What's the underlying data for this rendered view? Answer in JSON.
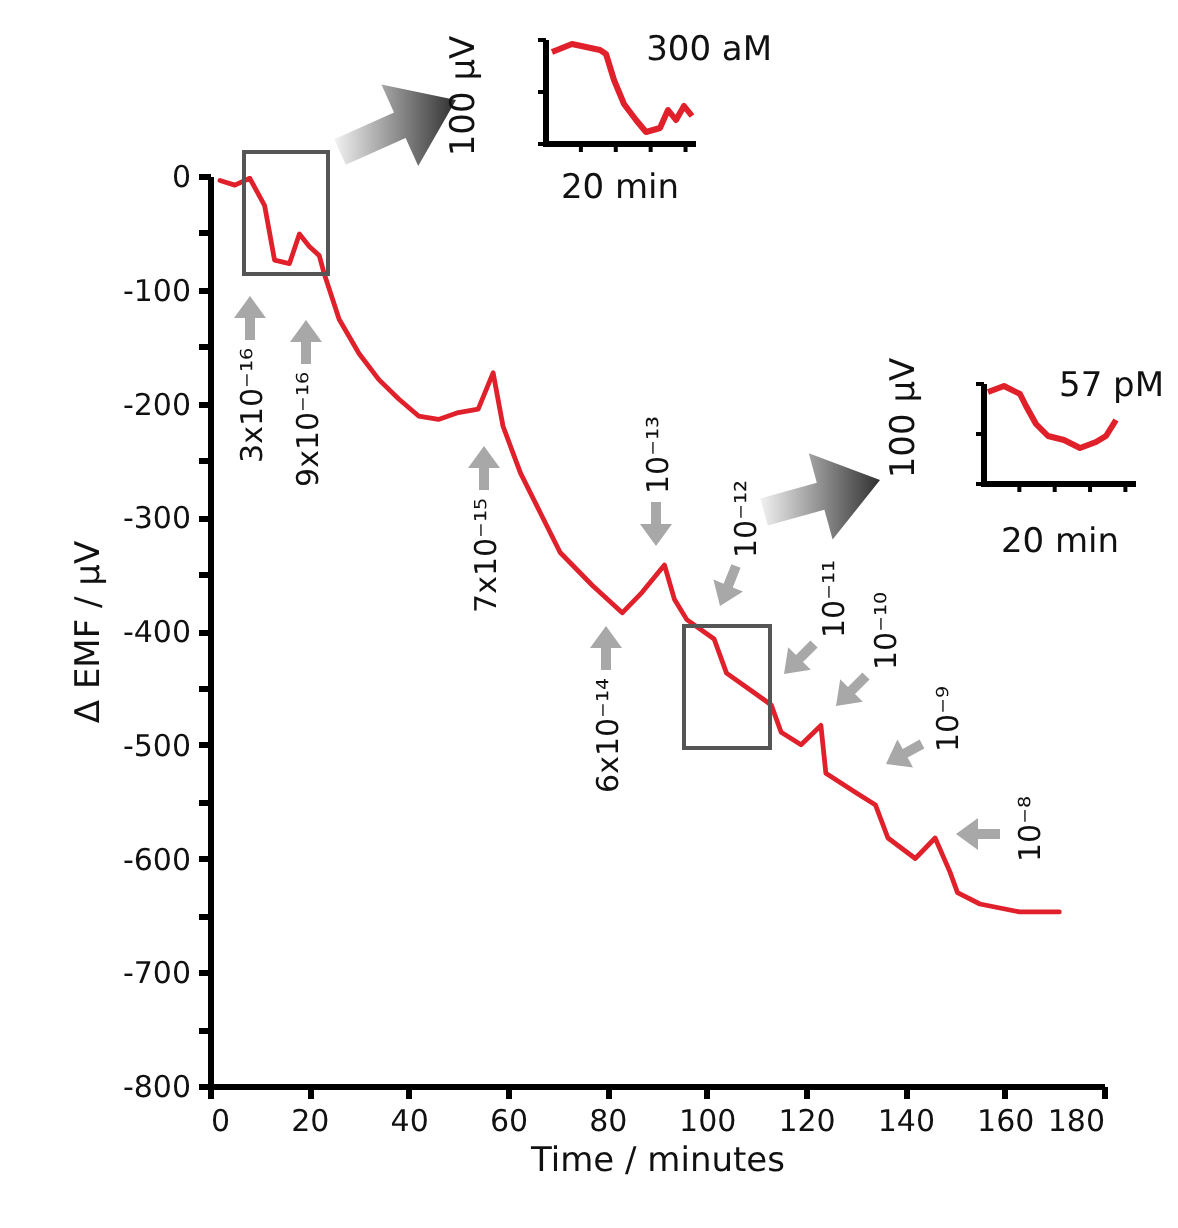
{
  "chart_data": {
    "type": "line",
    "xlabel": "Time / minutes",
    "ylabel": "Δ EMF / μV",
    "xlim": [
      0,
      180
    ],
    "xticks": [
      0,
      20,
      40,
      60,
      80,
      100,
      120,
      140,
      160,
      180
    ],
    "ylim": [
      -800,
      0
    ],
    "yticks": [
      -800,
      {
        "value": -750,
        "label": null
      },
      -700,
      {
        "value": -650,
        "label": null
      },
      -600,
      {
        "value": -550,
        "label": null
      },
      -500,
      {
        "value": -450,
        "label": null
      },
      -400,
      {
        "value": -350,
        "label": null
      },
      -300,
      {
        "value": -250,
        "label": null
      },
      -200,
      {
        "value": -150,
        "label": null
      },
      -100,
      {
        "value": -50,
        "label": null
      },
      0
    ],
    "grid": false,
    "marker": "none",
    "line_style": "solid",
    "series": [
      {
        "color": "#e0202a",
        "x": [
          2,
          5,
          8,
          11,
          13,
          16,
          18,
          20,
          22,
          23,
          26,
          30,
          34,
          38,
          42,
          46,
          50,
          54,
          57,
          59,
          62.5,
          66.5,
          70.5,
          77,
          83,
          87,
          91.5,
          93.5,
          96,
          101.5,
          104,
          109.5,
          113,
          115,
          119,
          123,
          124,
          130,
          134,
          136.5,
          142,
          146,
          149,
          150.5,
          155,
          163,
          171
        ],
        "values": [
          -4,
          -8,
          -2,
          -26,
          -74,
          -77,
          -51,
          -62,
          -70,
          -86,
          -126,
          -156,
          -179,
          -196,
          -211,
          -214,
          -208,
          -205,
          -173,
          -220,
          -261,
          -296,
          -331,
          -360,
          -384,
          -366,
          -342,
          -372,
          -390,
          -407,
          -437,
          -454,
          -465,
          -489,
          -500,
          -483,
          -525,
          -542,
          -553,
          -582,
          -600,
          -582,
          -612,
          -630,
          -640,
          -647,
          -647
        ]
      }
    ],
    "annotations": [
      "3x10⁻¹⁶",
      "9x10⁻¹⁶",
      "7x10⁻¹⁵",
      "6x10⁻¹⁴",
      "10⁻¹³",
      "10⁻¹²",
      "10⁻¹¹",
      "10⁻¹⁰",
      "10⁻⁹",
      "10⁻⁸",
      "100 μV",
      "20 min",
      "300 aM",
      "100 μV",
      "20 min",
      "57 pM"
    ]
  }
}
